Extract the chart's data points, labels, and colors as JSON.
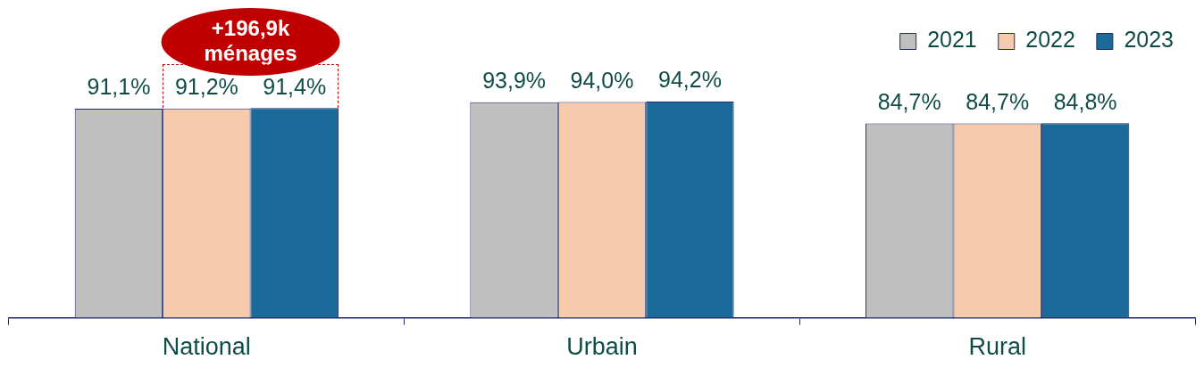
{
  "chart_data": {
    "type": "bar",
    "categories": [
      "National",
      "Urbain",
      "Rural"
    ],
    "series": [
      {
        "name": "2021",
        "color": "#bfbfbf",
        "values": [
          91.1,
          93.9,
          84.7
        ],
        "value_labels": [
          "91,1%",
          "93,9%",
          "84,7%"
        ]
      },
      {
        "name": "2022",
        "color": "#f6cbad",
        "values": [
          91.2,
          94.0,
          84.7
        ],
        "value_labels": [
          "91,2%",
          "94,0%",
          "84,7%"
        ]
      },
      {
        "name": "2023",
        "color": "#1a6a9a",
        "values": [
          91.4,
          94.2,
          84.8
        ],
        "value_labels": [
          "91,4%",
          "94,2%",
          "84,8%"
        ]
      }
    ],
    "legend": "top right",
    "grid": false,
    "annotations": [
      "+196,9k ménages"
    ]
  }
}
